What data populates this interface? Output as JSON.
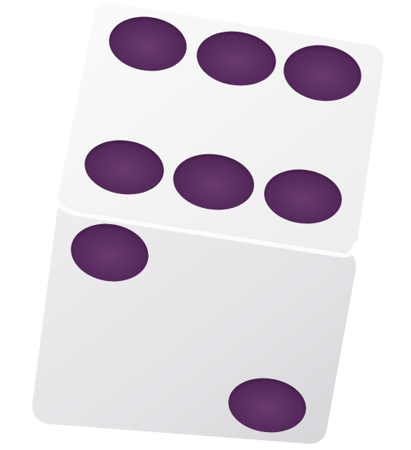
{
  "scene": {
    "subject": "die",
    "top_face_pips": 6,
    "front_face_pips": 2
  },
  "colors": {
    "background": "#ffffff",
    "die_top": "#f7f6f8",
    "die_front": "#e6e4e7",
    "die_edge": "#d9d6da",
    "pip": "#5a2d5f",
    "pip_dark": "#3d1a42"
  }
}
